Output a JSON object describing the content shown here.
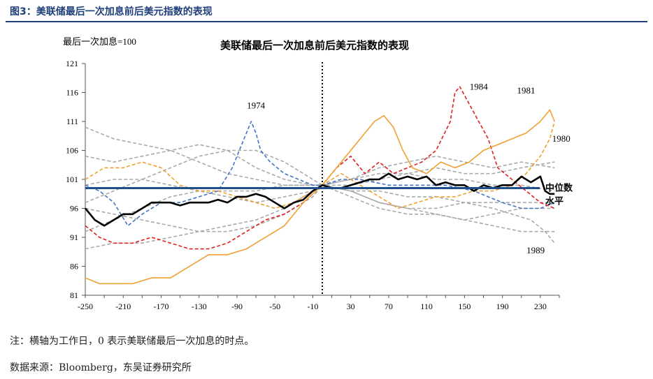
{
  "figure": {
    "title": "图3：美联储最后一次加息前后美元指数的表现",
    "note": "注：横轴为工作日，0 表示美联储最后一次加息的时点。",
    "source": "数据来源：Bloomberg，东吴证券研究所"
  },
  "colors": {
    "brand": "#1f3f7a",
    "median": "#1f4e8c",
    "grey": "#a9a9a9",
    "blue": "#4472c4",
    "red": "#e02020",
    "orange": "#f0a030",
    "black": "#000000"
  },
  "chart_data": {
    "type": "line",
    "title": "美联储最后一次加息前后美元指数的表现",
    "ylabel": "最后一次加息=100",
    "xlim": [
      -250,
      250
    ],
    "ylim": [
      81,
      121
    ],
    "xticks": [
      -250,
      -210,
      -170,
      -130,
      -90,
      -50,
      -10,
      30,
      70,
      110,
      150,
      190,
      230
    ],
    "yticks": [
      81,
      86,
      91,
      96,
      101,
      106,
      111,
      116,
      121
    ],
    "vline_x": 0,
    "median_level": 99.5,
    "median_label": [
      "中位数",
      "水平"
    ],
    "series": [
      {
        "name": "1974",
        "color": "blue",
        "style": "dashed",
        "x": [
          -250,
          -235,
          -220,
          -205,
          -190,
          -170,
          -150,
          -130,
          -110,
          -95,
          -85,
          -75,
          -70,
          -65,
          -55,
          -40,
          -25,
          -10,
          0,
          20,
          40,
          70,
          100,
          130,
          160,
          190,
          210,
          230,
          245
        ],
        "y": [
          100,
          99,
          97,
          93,
          95,
          97,
          97,
          98,
          99,
          103,
          107,
          111,
          109,
          106,
          104,
          102,
          101,
          100,
          100,
          101,
          101,
          100,
          100,
          100,
          99,
          97,
          96,
          96,
          97
        ]
      },
      {
        "name": "1984",
        "color": "red",
        "style": "dashed",
        "x": [
          -250,
          -235,
          -220,
          -200,
          -180,
          -160,
          -140,
          -120,
          -100,
          -80,
          -60,
          -40,
          -20,
          0,
          15,
          30,
          45,
          60,
          75,
          90,
          105,
          120,
          135,
          140,
          145,
          155,
          165,
          175,
          185,
          200,
          215,
          230,
          245
        ],
        "y": [
          93,
          91,
          90,
          90,
          91,
          90,
          89,
          89,
          90,
          92,
          94,
          95,
          97,
          100,
          103,
          105,
          102,
          104,
          102,
          103,
          104,
          106,
          111,
          116,
          117,
          114,
          111,
          108,
          103,
          101,
          99,
          97,
          96
        ]
      },
      {
        "name": "1981",
        "color": "orange",
        "style": "solid",
        "x": [
          -250,
          -235,
          -220,
          -200,
          -180,
          -160,
          -140,
          -120,
          -100,
          -80,
          -60,
          -40,
          -20,
          0,
          20,
          40,
          55,
          65,
          75,
          85,
          95,
          110,
          125,
          140,
          155,
          170,
          185,
          200,
          215,
          230,
          240,
          245
        ],
        "y": [
          84,
          83,
          83,
          83,
          84,
          84,
          86,
          88,
          88,
          89,
          91,
          93,
          97,
          100,
          104,
          108,
          111,
          112,
          110,
          106,
          103,
          102,
          104,
          103,
          104,
          106,
          107,
          108,
          109,
          111,
          113,
          111
        ]
      },
      {
        "name": "1980",
        "color": "orange",
        "style": "dashed",
        "x": [
          -250,
          -230,
          -210,
          -190,
          -170,
          -150,
          -130,
          -110,
          -90,
          -70,
          -50,
          -30,
          -10,
          0,
          20,
          40,
          60,
          80,
          100,
          120,
          140,
          160,
          180,
          200,
          215,
          230,
          240,
          245
        ],
        "y": [
          101,
          103,
          103,
          104,
          103,
          100,
          99,
          99,
          98,
          97,
          96,
          97,
          99,
          100,
          102,
          100,
          98,
          96,
          97,
          98,
          98,
          99,
          99,
          100,
          102,
          105,
          108,
          111
        ]
      },
      {
        "name": "1989",
        "color": "grey",
        "style": "dashed",
        "x": [
          -250,
          -220,
          -190,
          -160,
          -130,
          -100,
          -70,
          -40,
          -10,
          0,
          30,
          60,
          90,
          120,
          150,
          180,
          200,
          220,
          235,
          245
        ],
        "y": [
          100,
          101,
          101,
          100,
          99,
          99,
          99,
          100,
          100,
          100,
          99,
          99,
          98,
          98,
          97,
          96,
          95,
          94,
          92,
          90
        ]
      },
      {
        "name": "",
        "color": "grey",
        "style": "dashed",
        "x": [
          -250,
          -220,
          -190,
          -160,
          -130,
          -100,
          -70,
          -40,
          -10,
          0,
          30,
          60,
          90,
          120,
          150,
          180,
          210,
          245
        ],
        "y": [
          110,
          108,
          107,
          106,
          104,
          102,
          101,
          100,
          100,
          100,
          99,
          97,
          96,
          95,
          94,
          93,
          92,
          92
        ]
      },
      {
        "name": "",
        "color": "grey",
        "style": "dashed",
        "x": [
          -250,
          -220,
          -190,
          -160,
          -130,
          -100,
          -70,
          -40,
          -10,
          0,
          30,
          60,
          90,
          120,
          150,
          180,
          210,
          245
        ],
        "y": [
          97,
          99,
          101,
          103,
          105,
          106,
          106,
          104,
          101,
          100,
          101,
          103,
          104,
          105,
          104,
          103,
          104,
          103
        ]
      },
      {
        "name": "",
        "color": "grey",
        "style": "dashed",
        "x": [
          -250,
          -220,
          -190,
          -160,
          -130,
          -100,
          -70,
          -40,
          -10,
          0,
          30,
          60,
          90,
          120,
          150,
          180,
          210,
          245
        ],
        "y": [
          92,
          94,
          96,
          98,
          99,
          98,
          97,
          98,
          99,
          100,
          99,
          97,
          96,
          96,
          97,
          97,
          97,
          97
        ]
      },
      {
        "name": "",
        "color": "grey",
        "style": "dashed",
        "x": [
          -250,
          -220,
          -190,
          -160,
          -130,
          -100,
          -70,
          -40,
          -10,
          0,
          30,
          60,
          90,
          120,
          150,
          180,
          210,
          245
        ],
        "y": [
          89,
          90,
          90,
          91,
          92,
          92,
          93,
          95,
          98,
          100,
          101,
          102,
          102,
          101,
          101,
          100,
          100,
          99
        ]
      },
      {
        "name": "",
        "color": "grey",
        "style": "dashed",
        "x": [
          -250,
          -220,
          -190,
          -160,
          -130,
          -100,
          -70,
          -40,
          -10,
          0,
          30,
          60,
          90,
          120,
          150,
          180,
          210,
          245
        ],
        "y": [
          105,
          104,
          105,
          106,
          107,
          106,
          103,
          101,
          100,
          100,
          100,
          101,
          102,
          103,
          102,
          102,
          103,
          104
        ]
      },
      {
        "name": "",
        "color": "grey",
        "style": "dashed",
        "x": [
          -250,
          -220,
          -190,
          -160,
          -130,
          -100,
          -70,
          -40,
          -10,
          0,
          30,
          60,
          90,
          120,
          150,
          180,
          210,
          245
        ],
        "y": [
          96,
          95,
          94,
          93,
          92,
          93,
          94,
          96,
          99,
          100,
          98,
          96,
          95,
          95,
          94,
          95,
          96,
          96
        ]
      },
      {
        "name": "median",
        "color": "black",
        "style": "solid",
        "x": [
          -250,
          -240,
          -230,
          -220,
          -210,
          -200,
          -190,
          -180,
          -170,
          -160,
          -150,
          -140,
          -130,
          -120,
          -110,
          -100,
          -90,
          -80,
          -70,
          -60,
          -50,
          -40,
          -30,
          -20,
          -10,
          0,
          10,
          20,
          30,
          40,
          50,
          60,
          70,
          80,
          90,
          100,
          110,
          120,
          130,
          140,
          150,
          160,
          170,
          180,
          190,
          200,
          210,
          220,
          230,
          235,
          240,
          245
        ],
        "y": [
          96,
          94,
          93,
          94,
          95,
          95,
          96,
          97,
          97,
          97,
          96.5,
          97,
          97,
          97,
          97.5,
          97,
          98,
          98,
          98.5,
          98,
          97,
          96,
          97,
          97.5,
          99,
          100,
          99.5,
          99.5,
          100,
          100.5,
          101,
          101,
          102,
          101,
          101.5,
          101,
          101.5,
          100,
          100.5,
          100,
          100,
          99,
          100,
          99.5,
          100,
          100,
          101.5,
          100.5,
          101.5,
          99,
          98.5,
          98.5
        ]
      }
    ],
    "annotations": [
      {
        "text": "1974",
        "x": -70,
        "y": 113.2
      },
      {
        "text": "1984",
        "x": 165,
        "y": 116.5
      },
      {
        "text": "1981",
        "x": 215,
        "y": 115.8
      },
      {
        "text": "1980",
        "x": 252,
        "y": 107.5
      },
      {
        "text": "1989",
        "x": 225,
        "y": 88.2
      }
    ]
  }
}
